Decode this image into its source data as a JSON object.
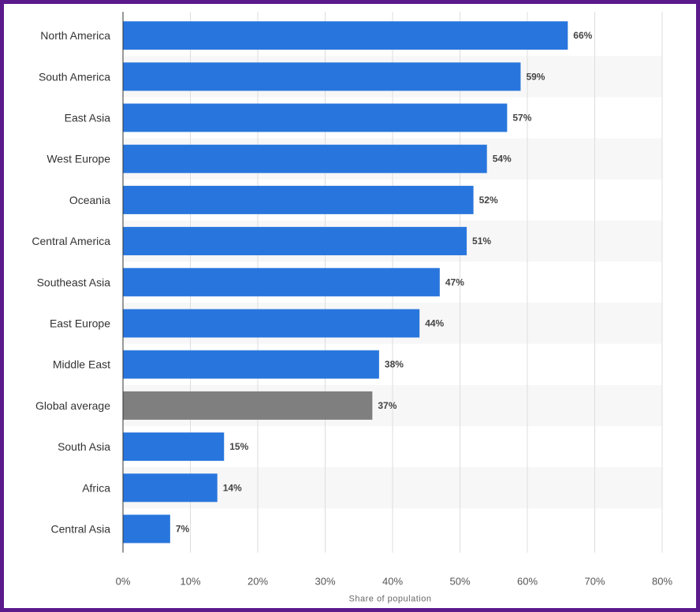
{
  "chart_data": {
    "type": "bar",
    "orientation": "horizontal",
    "categories": [
      "North America",
      "South America",
      "East Asia",
      "West Europe",
      "Oceania",
      "Central America",
      "Southeast Asia",
      "East Europe",
      "Middle East",
      "Global average",
      "South Asia",
      "Africa",
      "Central Asia"
    ],
    "values": [
      66,
      59,
      57,
      54,
      52,
      51,
      47,
      44,
      38,
      37,
      15,
      14,
      7
    ],
    "value_labels": [
      "66%",
      "59%",
      "57%",
      "54%",
      "52%",
      "51%",
      "47%",
      "44%",
      "38%",
      "37%",
      "15%",
      "14%",
      "7%"
    ],
    "highlight_category": "Global average",
    "xlabel": "Share of population",
    "ylabel": "",
    "xlim": [
      0,
      80
    ],
    "xticks": [
      0,
      10,
      20,
      30,
      40,
      50,
      60,
      70,
      80
    ],
    "xtick_labels": [
      "0%",
      "10%",
      "20%",
      "30%",
      "40%",
      "50%",
      "60%",
      "70%",
      "80%"
    ],
    "grid": "vertical",
    "colors": {
      "bar": "#2876dd",
      "highlight_bar": "#7f7f7f",
      "band": "#f7f7f7",
      "grid": "#dddddd",
      "frame": "#5b1a8c"
    }
  }
}
